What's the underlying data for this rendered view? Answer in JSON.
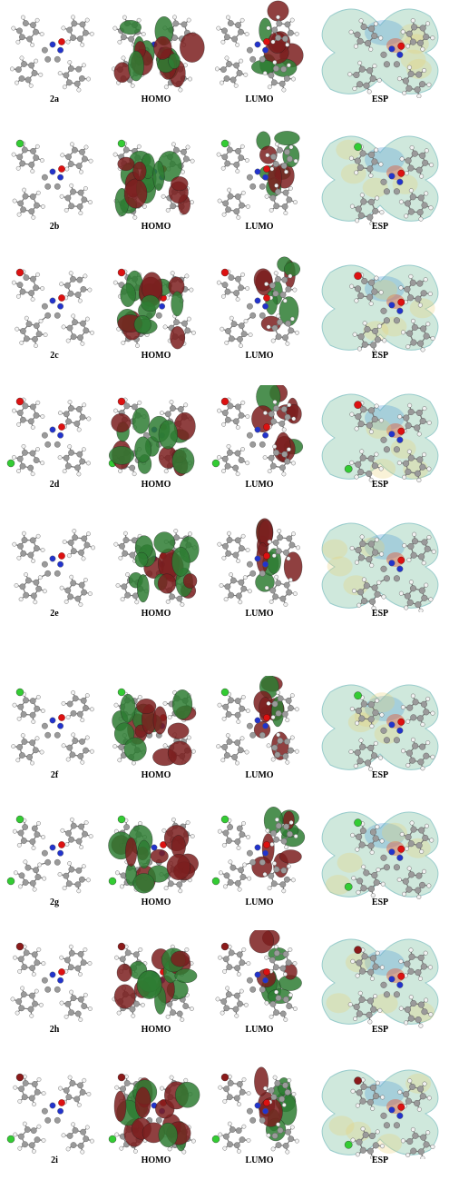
{
  "panel_headers": [
    "HOMO",
    "LUMO",
    "ESP"
  ],
  "rows": [
    {
      "compound": "2a",
      "homo": "HOMO",
      "lumo": "LUMO",
      "esp": "ESP",
      "substituents": []
    },
    {
      "compound": "2b",
      "homo": "HOMO",
      "lumo": "LUMO",
      "esp": "ESP",
      "substituents": [
        "Cl"
      ]
    },
    {
      "compound": "2c",
      "homo": "HOMO",
      "lumo": "LUMO",
      "esp": "ESP",
      "substituents": [
        "O"
      ]
    },
    {
      "compound": "2d",
      "homo": "HOMO",
      "lumo": "LUMO",
      "esp": "ESP",
      "substituents": [
        "O",
        "Cl"
      ]
    },
    {
      "compound": "2e",
      "homo": "HOMO",
      "lumo": "LUMO",
      "esp": "ESP",
      "substituents": []
    },
    {
      "compound": "2f",
      "homo": "HOMO",
      "lumo": "LUMO",
      "esp": "ESP",
      "substituents": [
        "Cl"
      ]
    },
    {
      "compound": "2g",
      "homo": "HOMO",
      "lumo": "LUMO",
      "esp": "ESP",
      "substituents": [
        "Cl",
        "Cl"
      ]
    },
    {
      "compound": "2h",
      "homo": "HOMO",
      "lumo": "LUMO",
      "esp": "ESP",
      "substituents": [
        "Br"
      ]
    },
    {
      "compound": "2i",
      "homo": "HOMO",
      "lumo": "LUMO",
      "esp": "ESP",
      "substituents": [
        "Br",
        "Cl"
      ]
    }
  ],
  "colors": {
    "carbon": "#9a9a9a",
    "hydrogen": "#f2f2f2",
    "nitrogen": "#2233cc",
    "oxygen": "#dd1111",
    "chlorine": "#33cc33",
    "bromine": "#8b1a1a",
    "orbital_positive": "#2e7d32",
    "orbital_negative": "#7b1f1f",
    "esp_surface": "#bfe0d0",
    "esp_negative": "#e0583a",
    "esp_positive": "#5aa0d8"
  }
}
